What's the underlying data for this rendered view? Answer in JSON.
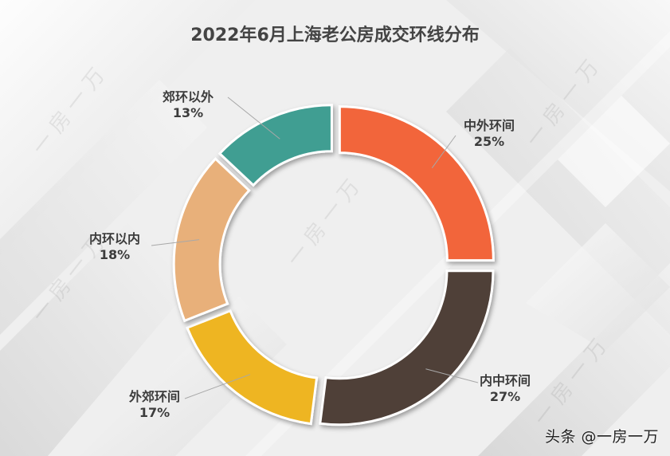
{
  "title": "2022年6月上海老公房成交环线分布",
  "watermark": "头条 @一房一万",
  "background_watermark_text": "一 房 一 万",
  "chart_data": {
    "type": "pie",
    "variant": "donut-exploded",
    "title": "2022年6月上海老公房成交环线分布",
    "categories": [
      "中外环间",
      "内中环间",
      "外郊环间",
      "内环以内",
      "郊环以外"
    ],
    "values": [
      25,
      27,
      17,
      18,
      13
    ],
    "unit": "%",
    "colors": [
      "#f2653a",
      "#4f4039",
      "#eeb524",
      "#e8b07a",
      "#409e92"
    ],
    "start_angle_deg": 0,
    "direction": "clockwise",
    "legend": "none (data labels with leader lines)"
  },
  "labels": [
    {
      "name": "中外环间",
      "pct": "25%"
    },
    {
      "name": "内中环间",
      "pct": "27%"
    },
    {
      "name": "外郊环间",
      "pct": "17%"
    },
    {
      "name": "内环以内",
      "pct": "18%"
    },
    {
      "name": "郊环以外",
      "pct": "13%"
    }
  ]
}
